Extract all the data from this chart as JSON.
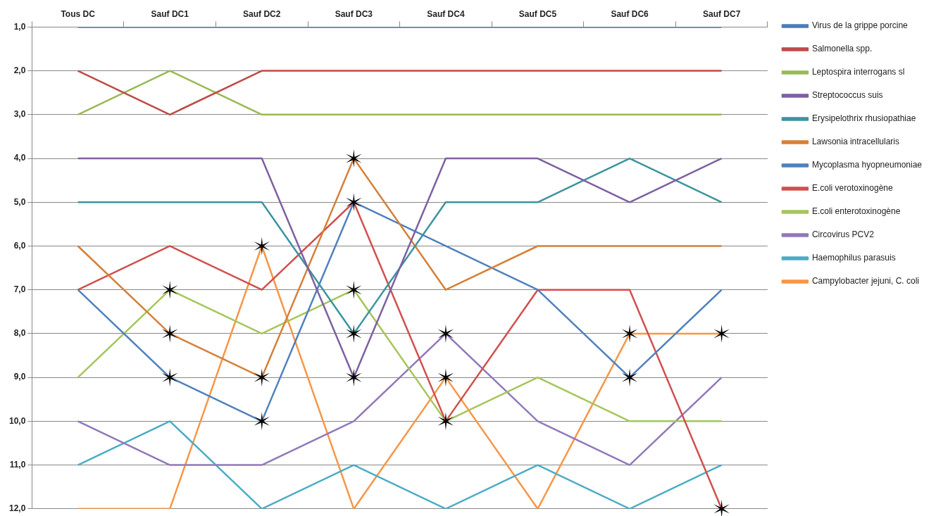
{
  "chart_data": {
    "type": "line",
    "categories": [
      "Tous DC",
      "Sauf DC1",
      "Sauf DC2",
      "Sauf DC3",
      "Sauf DC4",
      "Sauf DC5",
      "Sauf DC6",
      "Sauf DC7"
    ],
    "ylim": [
      12,
      1
    ],
    "yticks": [
      {
        "value": 1,
        "label": "1,0"
      },
      {
        "value": 2,
        "label": "2,0"
      },
      {
        "value": 3,
        "label": "3,0"
      },
      {
        "value": 4,
        "label": "4,0"
      },
      {
        "value": 5,
        "label": "5,0"
      },
      {
        "value": 6,
        "label": "6,0"
      },
      {
        "value": 7,
        "label": "7,0"
      },
      {
        "value": 8,
        "label": "8,0"
      },
      {
        "value": 9,
        "label": "9,0"
      },
      {
        "value": 10,
        "label": "10,0"
      },
      {
        "value": 11,
        "label": "11,0"
      },
      {
        "value": 12,
        "label": "12,0"
      }
    ],
    "grid": "y",
    "legend": "right",
    "marker": "none",
    "line_style": "solid",
    "series": [
      {
        "name": "Virus de la grippe porcine",
        "color": "#4a7ebb",
        "values": [
          1,
          1,
          1,
          1,
          1,
          1,
          1,
          1
        ]
      },
      {
        "name": "Salmonella spp.",
        "color": "#be4b48",
        "values": [
          2,
          3,
          2,
          2,
          2,
          2,
          2,
          2
        ]
      },
      {
        "name": "Leptospira interrogans sl",
        "color": "#98b954",
        "values": [
          3,
          2,
          3,
          3,
          3,
          3,
          3,
          3
        ]
      },
      {
        "name": "Streptococcus suis",
        "color": "#7d60a0",
        "values": [
          4,
          4,
          4,
          9,
          4,
          4,
          5,
          4
        ]
      },
      {
        "name": "Erysipelothrix rhusiopathiae",
        "color": "#3c949f",
        "values": [
          5,
          5,
          5,
          8,
          5,
          5,
          4,
          5
        ]
      },
      {
        "name": "Lawsonia intracellularis",
        "color": "#d5803a",
        "values": [
          6,
          8,
          9,
          4,
          7,
          6,
          6,
          6
        ]
      },
      {
        "name": "Mycoplasma hyopneumoniae",
        "color": "#4f81bd",
        "values": [
          7,
          9,
          10,
          5,
          6,
          7,
          9,
          7
        ]
      },
      {
        "name": "E.coli verotoxinogène",
        "color": "#d0504d",
        "values": [
          7,
          6,
          7,
          5,
          10,
          7,
          7,
          12
        ]
      },
      {
        "name": "E.coli enterotoxinogène",
        "color": "#a5c65a",
        "values": [
          9,
          7,
          8,
          7,
          10,
          9,
          10,
          10
        ]
      },
      {
        "name": "Circovirus PCV2",
        "color": "#9178bb",
        "values": [
          10,
          11,
          11,
          10,
          8,
          10,
          11,
          9
        ]
      },
      {
        "name": "Haemophilus parasuis",
        "color": "#4bacc6",
        "values": [
          11,
          10,
          12,
          11,
          12,
          11,
          12,
          11
        ]
      },
      {
        "name": "Campylobacter jejuni, C. coli",
        "color": "#f79646",
        "values": [
          12,
          12,
          6,
          12,
          9,
          12,
          8,
          8
        ]
      },
      {
        "type": "scatter",
        "color": "#000000",
        "marker": "cross",
        "x": [
          "Sauf DC1",
          "Sauf DC1",
          "Sauf DC1",
          "Sauf DC2",
          "Sauf DC2",
          "Sauf DC2",
          "Sauf DC3",
          "Sauf DC3",
          "Sauf DC3",
          "Sauf DC3",
          "Sauf DC3",
          "Sauf DC4",
          "Sauf DC4",
          "Sauf DC4",
          "Sauf DC6",
          "Sauf DC6",
          "Sauf DC7",
          "Sauf DC7"
        ],
        "values": [
          7,
          8,
          9,
          6,
          9,
          10,
          4,
          5,
          7,
          8,
          9,
          8,
          9,
          10,
          8,
          9,
          8,
          12
        ]
      }
    ]
  }
}
